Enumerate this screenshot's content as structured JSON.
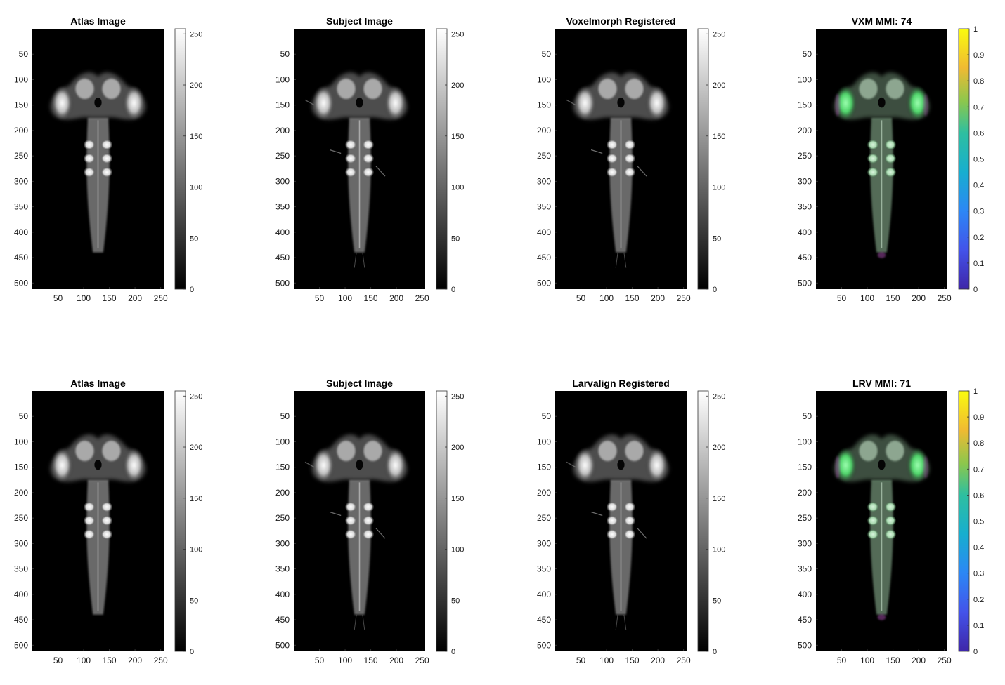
{
  "figure": {
    "rows": 2,
    "cols": 4
  },
  "chart_data": [
    {
      "type": "heatmap",
      "title": "Atlas Image",
      "image": "atlas",
      "colormap": "gray",
      "xlim": [
        0,
        256
      ],
      "ylim": [
        0,
        512
      ],
      "xticks": [
        50,
        100,
        150,
        200,
        250
      ],
      "yticks": [
        50,
        100,
        150,
        200,
        250,
        300,
        350,
        400,
        450,
        500
      ],
      "colorbar": {
        "min": 0,
        "max": 255,
        "ticks": [
          0,
          50,
          100,
          150,
          200,
          250
        ]
      }
    },
    {
      "type": "heatmap",
      "title": "Subject Image",
      "image": "subject",
      "colormap": "gray",
      "xlim": [
        0,
        256
      ],
      "ylim": [
        0,
        512
      ],
      "xticks": [
        50,
        100,
        150,
        200,
        250
      ],
      "yticks": [
        50,
        100,
        150,
        200,
        250,
        300,
        350,
        400,
        450,
        500
      ],
      "colorbar": {
        "min": 0,
        "max": 255,
        "ticks": [
          0,
          50,
          100,
          150,
          200,
          250
        ]
      }
    },
    {
      "type": "heatmap",
      "title": "Voxelmorph Registered",
      "image": "registered",
      "colormap": "gray",
      "xlim": [
        0,
        256
      ],
      "ylim": [
        0,
        512
      ],
      "xticks": [
        50,
        100,
        150,
        200,
        250
      ],
      "yticks": [
        50,
        100,
        150,
        200,
        250,
        300,
        350,
        400,
        450,
        500
      ],
      "colorbar": {
        "min": 0,
        "max": 255,
        "ticks": [
          0,
          50,
          100,
          150,
          200,
          250
        ]
      }
    },
    {
      "type": "heatmap",
      "title": "VXM MMI: 74",
      "image": "overlay",
      "colormap": "parula",
      "xlim": [
        0,
        256
      ],
      "ylim": [
        0,
        512
      ],
      "xticks": [
        50,
        100,
        150,
        200,
        250
      ],
      "yticks": [
        50,
        100,
        150,
        200,
        250,
        300,
        350,
        400,
        450,
        500
      ],
      "colorbar": {
        "min": 0,
        "max": 1,
        "ticks": [
          0,
          0.1,
          0.2,
          0.3,
          0.4,
          0.5,
          0.6,
          0.7,
          0.8,
          0.9,
          1
        ]
      }
    },
    {
      "type": "heatmap",
      "title": "Atlas Image",
      "image": "atlas",
      "colormap": "gray",
      "xlim": [
        0,
        256
      ],
      "ylim": [
        0,
        512
      ],
      "xticks": [
        50,
        100,
        150,
        200,
        250
      ],
      "yticks": [
        50,
        100,
        150,
        200,
        250,
        300,
        350,
        400,
        450,
        500
      ],
      "colorbar": {
        "min": 0,
        "max": 255,
        "ticks": [
          0,
          50,
          100,
          150,
          200,
          250
        ]
      }
    },
    {
      "type": "heatmap",
      "title": "Subject Image",
      "image": "subject",
      "colormap": "gray",
      "xlim": [
        0,
        256
      ],
      "ylim": [
        0,
        512
      ],
      "xticks": [
        50,
        100,
        150,
        200,
        250
      ],
      "yticks": [
        50,
        100,
        150,
        200,
        250,
        300,
        350,
        400,
        450,
        500
      ],
      "colorbar": {
        "min": 0,
        "max": 255,
        "ticks": [
          0,
          50,
          100,
          150,
          200,
          250
        ]
      }
    },
    {
      "type": "heatmap",
      "title": "Larvalign Registered",
      "image": "registered",
      "colormap": "gray",
      "xlim": [
        0,
        256
      ],
      "ylim": [
        0,
        512
      ],
      "xticks": [
        50,
        100,
        150,
        200,
        250
      ],
      "yticks": [
        50,
        100,
        150,
        200,
        250,
        300,
        350,
        400,
        450,
        500
      ],
      "colorbar": {
        "min": 0,
        "max": 255,
        "ticks": [
          0,
          50,
          100,
          150,
          200,
          250
        ]
      }
    },
    {
      "type": "heatmap",
      "title": "LRV MMI: 71",
      "image": "overlay",
      "colormap": "parula",
      "xlim": [
        0,
        256
      ],
      "ylim": [
        0,
        512
      ],
      "xticks": [
        50,
        100,
        150,
        200,
        250
      ],
      "yticks": [
        50,
        100,
        150,
        200,
        250,
        300,
        350,
        400,
        450,
        500
      ],
      "colorbar": {
        "min": 0,
        "max": 1,
        "ticks": [
          0,
          0.1,
          0.2,
          0.3,
          0.4,
          0.5,
          0.6,
          0.7,
          0.8,
          0.9,
          1
        ]
      }
    }
  ]
}
